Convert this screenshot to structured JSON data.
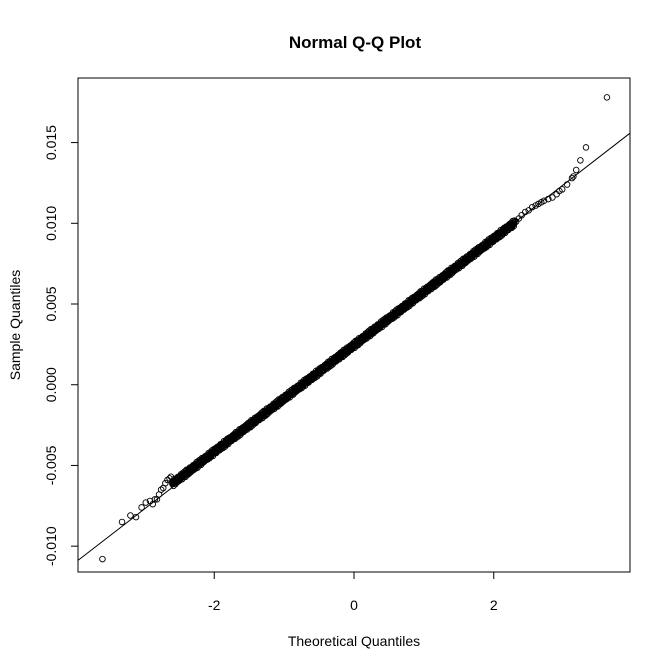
{
  "chart_data": {
    "type": "scatter",
    "title": "Normal Q-Q Plot",
    "xlabel": "Theoretical Quantiles",
    "ylabel": "Sample Quantiles",
    "xlim": [
      -3.95,
      3.95
    ],
    "ylim": [
      -0.0116,
      0.019
    ],
    "xticks": [
      -2,
      0,
      2
    ],
    "xtick_labels": [
      "-2",
      "0",
      "2"
    ],
    "yticks": [
      -0.01,
      -0.005,
      0.0,
      0.005,
      0.01,
      0.015
    ],
    "ytick_labels": [
      "-0.010",
      "-0.005",
      "0.000",
      "0.005",
      "0.010",
      "0.015"
    ],
    "grid": false,
    "marker": "open-circle",
    "reference_line": {
      "intercept": 0.00235,
      "slope": 0.00335
    },
    "dense_band": {
      "x_from": -2.6,
      "x_to": 2.3,
      "intercept": 0.00245,
      "slope": 0.0033,
      "count": 1400
    },
    "points": [
      {
        "x": -3.6,
        "y": -0.0108
      },
      {
        "x": -3.32,
        "y": -0.0085
      },
      {
        "x": -3.2,
        "y": -0.0081
      },
      {
        "x": -3.12,
        "y": -0.0082
      },
      {
        "x": -3.04,
        "y": -0.0076
      },
      {
        "x": -2.98,
        "y": -0.0073
      },
      {
        "x": -2.92,
        "y": -0.0072
      },
      {
        "x": -2.88,
        "y": -0.0074
      },
      {
        "x": -2.85,
        "y": -0.0071
      },
      {
        "x": -2.82,
        "y": -0.0071
      },
      {
        "x": -2.79,
        "y": -0.0068
      },
      {
        "x": -2.76,
        "y": -0.0065
      },
      {
        "x": -2.73,
        "y": -0.0064
      },
      {
        "x": -2.7,
        "y": -0.0061
      },
      {
        "x": -2.67,
        "y": -0.0059
      },
      {
        "x": -2.64,
        "y": -0.0058
      },
      {
        "x": -2.62,
        "y": -0.0057
      },
      {
        "x": 2.32,
        "y": 0.0101
      },
      {
        "x": 2.36,
        "y": 0.0103
      },
      {
        "x": 2.4,
        "y": 0.0105
      },
      {
        "x": 2.45,
        "y": 0.0107
      },
      {
        "x": 2.5,
        "y": 0.0108
      },
      {
        "x": 2.55,
        "y": 0.011
      },
      {
        "x": 2.6,
        "y": 0.0111
      },
      {
        "x": 2.64,
        "y": 0.0112
      },
      {
        "x": 2.68,
        "y": 0.0113
      },
      {
        "x": 2.72,
        "y": 0.0114
      },
      {
        "x": 2.78,
        "y": 0.0115
      },
      {
        "x": 2.84,
        "y": 0.0116
      },
      {
        "x": 2.9,
        "y": 0.0118
      },
      {
        "x": 2.94,
        "y": 0.012
      },
      {
        "x": 2.98,
        "y": 0.0121
      },
      {
        "x": 3.05,
        "y": 0.0124
      },
      {
        "x": 3.12,
        "y": 0.0128
      },
      {
        "x": 3.14,
        "y": 0.0129
      },
      {
        "x": 3.18,
        "y": 0.0133
      },
      {
        "x": 3.24,
        "y": 0.0139
      },
      {
        "x": 3.32,
        "y": 0.0147
      },
      {
        "x": 3.62,
        "y": 0.0178
      }
    ]
  }
}
